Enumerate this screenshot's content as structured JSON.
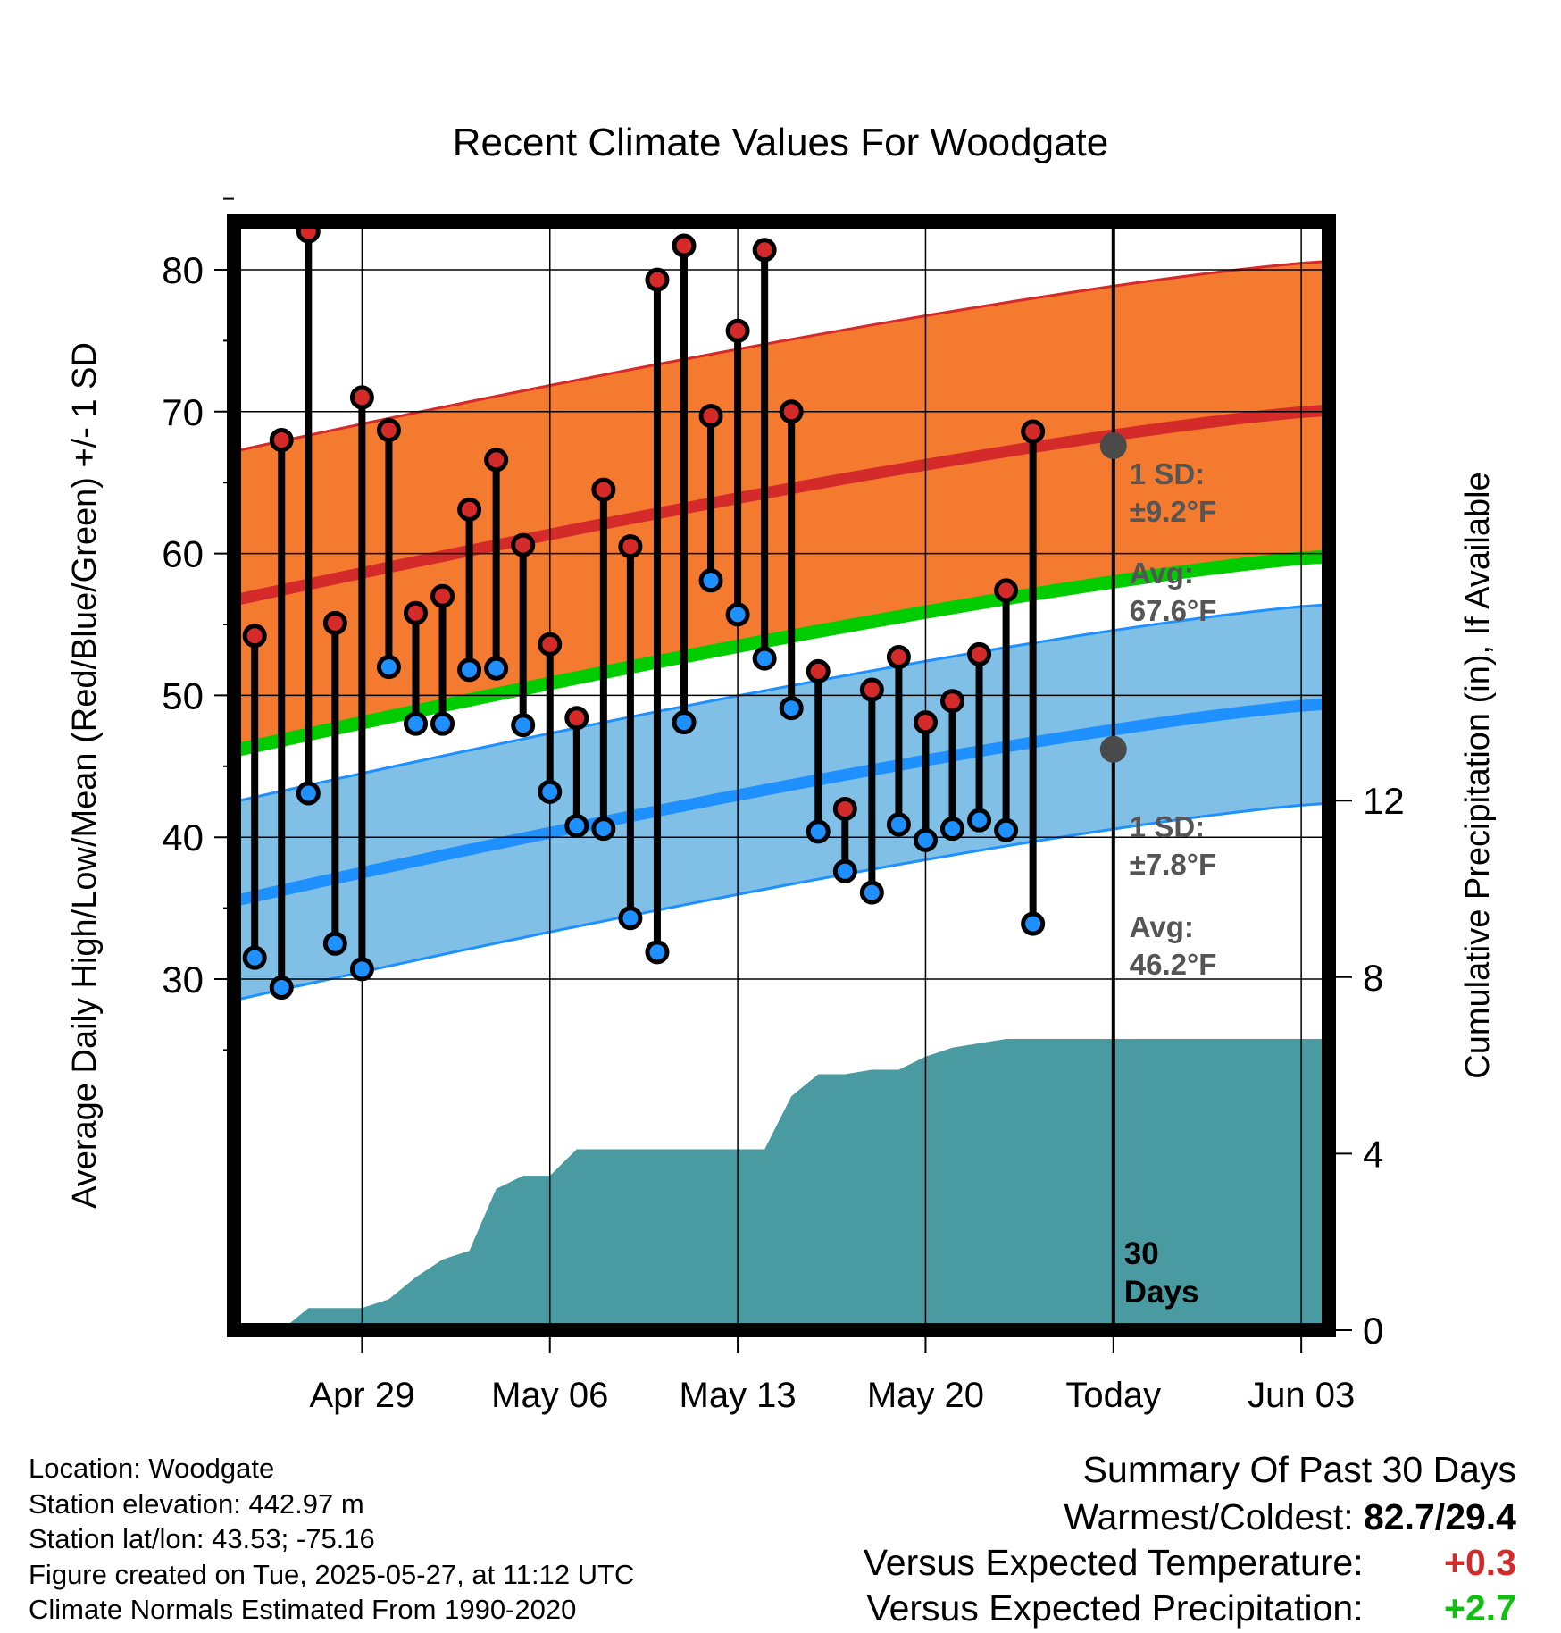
{
  "chart_data": {
    "type": "line",
    "title": "Recent Climate Values For Woodgate",
    "xlabel": "Day",
    "ylabel": "Average Daily High/Low/Mean (Red/Blue/Green) +/- 1 SD",
    "ylabel_right": "Cumulative Precipitation (in), If Available",
    "x_tick_labels": [
      "Apr 29",
      "May 06",
      "May 13",
      "May 20",
      "Today",
      "Jun 03"
    ],
    "x_range_days": [
      "Apr 25",
      "Jun 05"
    ],
    "y_ticks": [
      30,
      40,
      50,
      60,
      70,
      80
    ],
    "ylim": [
      22,
      88
    ],
    "y2_ticks": [
      0,
      4,
      8,
      12
    ],
    "y2lim": [
      0,
      25
    ],
    "grid": true,
    "today_marker_label": "30 Days",
    "highs": [
      54.2,
      68.0,
      82.7,
      55.1,
      71.0,
      68.7,
      55.8,
      57.0,
      63.1,
      66.6,
      60.6,
      53.6,
      48.4,
      64.5,
      60.5,
      79.3,
      81.7,
      69.7,
      75.7,
      81.4,
      70.0,
      51.7,
      42.0,
      50.4,
      52.7,
      48.1,
      49.6,
      52.9,
      57.4,
      68.6
    ],
    "lows": [
      31.5,
      29.4,
      43.1,
      32.5,
      30.7,
      52.0,
      48.0,
      48.0,
      51.8,
      51.9,
      47.9,
      43.2,
      40.8,
      40.6,
      34.3,
      31.9,
      48.1,
      58.1,
      55.7,
      52.6,
      49.1,
      40.4,
      37.6,
      36.1,
      40.9,
      39.8,
      40.6,
      41.2,
      40.5,
      33.9
    ],
    "series": [
      {
        "name": "Normal High",
        "color": "#d42a2a",
        "start": 56.7,
        "end": 70.1,
        "sd_label": "1 SD:",
        "sd_value": "±9.2°F",
        "avg_label": "Avg:",
        "avg_value": "67.6°F"
      },
      {
        "name": "Normal Low",
        "color": "#1e90ff",
        "start": 35.5,
        "end": 49.4,
        "sd_label": "1 SD:",
        "sd_value": "±7.8°F",
        "avg_label": "Avg:",
        "avg_value": "46.2°F"
      },
      {
        "name": "Normal Mean",
        "color": "#00cc00",
        "start": 46.1,
        "end": 59.8
      }
    ],
    "precip_cumulative": [
      0.0,
      0.0,
      0.5,
      0.5,
      0.5,
      0.7,
      1.2,
      1.6,
      1.8,
      3.2,
      3.5,
      3.5,
      4.1,
      4.1,
      4.1,
      4.1,
      4.1,
      4.1,
      4.1,
      4.1,
      5.3,
      5.8,
      5.8,
      5.9,
      5.9,
      6.2,
      6.4,
      6.5,
      6.6,
      6.6,
      6.6,
      6.6,
      6.6,
      6.6,
      6.6,
      6.6,
      6.6,
      6.6,
      6.6,
      6.6,
      6.6,
      6.6
    ],
    "colors": {
      "high_band": "#f47a30",
      "low_band": "#80c0e6",
      "precip": "#4a9aa2",
      "high_dot": "#d42a2a",
      "low_dot": "#1e90ff",
      "avg_dot": "#4a4a4a",
      "annotation": "#555555"
    }
  },
  "footer": {
    "location": "Location: Woodgate",
    "elevation": "Station elevation: 442.97 m",
    "latlon": "Station lat/lon: 43.53; -75.16",
    "created": "Figure created on Tue, 2025-05-27, at 11:12 UTC",
    "normals": "Climate Normals Estimated From 1990-2020"
  },
  "summary": {
    "title": "Summary Of Past 30 Days",
    "warm_label": "Warmest/Coldest:",
    "warm_value": "82.7/29.4",
    "temp_label": "Versus Expected Temperature:",
    "temp_value": "+0.3",
    "precip_label": "Versus Expected Precipitation:",
    "precip_value": "+2.7"
  }
}
